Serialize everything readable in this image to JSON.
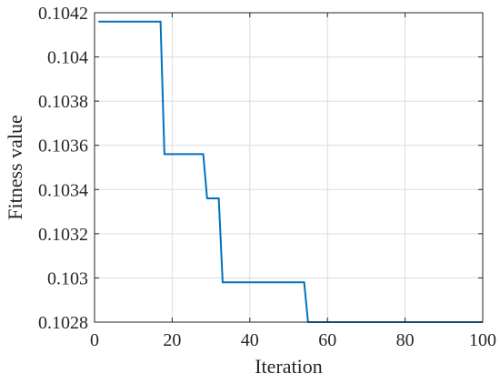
{
  "chart_data": {
    "type": "line",
    "title": "",
    "xlabel": "Iteration",
    "ylabel": "Fitness value",
    "xlim": [
      0,
      100
    ],
    "ylim": [
      0.1028,
      0.1042
    ],
    "grid": true,
    "legend": "none",
    "x_ticks": [
      0,
      20,
      40,
      60,
      80,
      100
    ],
    "x_tick_labels": [
      "0",
      "20",
      "40",
      "60",
      "80",
      "100"
    ],
    "y_ticks": [
      0.1028,
      0.103,
      0.1032,
      0.1034,
      0.1036,
      0.1038,
      0.104,
      0.1042
    ],
    "y_tick_labels": [
      "0.1028",
      "0.103",
      "0.1032",
      "0.1034",
      "0.1036",
      "0.1038",
      "0.104",
      "0.1042"
    ],
    "series": [
      {
        "color": "#0072BD",
        "x": [
          1,
          17,
          18,
          28,
          29,
          32,
          33,
          54,
          55,
          100
        ],
        "y": [
          0.10416,
          0.10416,
          0.10356,
          0.10356,
          0.10336,
          0.10336,
          0.10298,
          0.10298,
          0.1028,
          0.1028
        ]
      }
    ]
  }
}
